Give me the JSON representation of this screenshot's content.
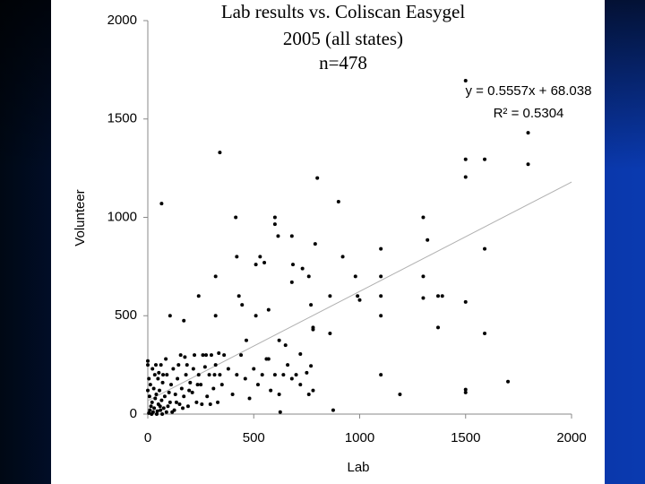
{
  "chart_data": {
    "type": "scatter",
    "title": [
      "Lab results vs. Coliscan Easygel",
      "2005 (all states)",
      "n=478"
    ],
    "x_label": "Lab",
    "y_label": "Volunteer",
    "xlim": [
      0,
      2000
    ],
    "ylim": [
      0,
      2000
    ],
    "xticks": [
      0,
      500,
      1000,
      1500,
      2000
    ],
    "yticks": [
      0,
      500,
      1000,
      1500,
      2000
    ],
    "grid": false,
    "color": "#000000",
    "x": [
      65,
      340,
      415,
      1500,
      1795,
      1795,
      1500,
      1590,
      1500,
      800,
      900,
      1300,
      1320,
      1590,
      1100,
      600,
      600,
      615,
      680,
      790,
      920,
      980,
      1100,
      1300,
      530,
      550,
      510,
      420,
      320,
      685,
      730,
      760,
      680,
      240,
      430,
      860,
      990,
      1000,
      1100,
      1300,
      1370,
      1390,
      1500,
      770,
      570,
      510,
      1100,
      105,
      170,
      320,
      445,
      780,
      780,
      860,
      1370,
      1590,
      465,
      620,
      650,
      720,
      770,
      570,
      1100,
      1190,
      1500,
      1500,
      1700,
      875,
      625,
      760,
      680,
      5,
      10,
      15,
      20,
      25,
      30,
      35,
      40,
      45,
      50,
      55,
      60,
      65,
      70,
      75,
      80,
      90,
      95,
      100,
      105,
      110,
      120,
      125,
      130,
      140,
      150,
      155,
      160,
      170,
      180,
      185,
      190,
      200,
      210,
      220,
      230,
      240,
      250,
      260,
      270,
      280,
      290,
      300,
      310,
      320,
      330,
      340,
      350,
      360,
      380,
      400,
      420,
      440,
      460,
      480,
      500,
      520,
      540,
      560,
      580,
      600,
      620,
      640,
      660,
      700,
      720,
      750,
      780,
      0,
      0,
      0,
      5,
      8,
      12,
      18,
      22,
      28,
      33,
      38,
      42,
      48,
      52,
      58,
      62,
      68,
      72,
      85,
      88,
      115,
      135,
      145,
      165,
      175,
      195,
      215,
      235,
      255,
      275,
      295,
      315,
      335
    ],
    "values": [
      1070,
      1330,
      1000,
      1695,
      1430,
      1270,
      1295,
      1295,
      1205,
      1200,
      1080,
      1000,
      885,
      840,
      840,
      1000,
      965,
      905,
      905,
      865,
      800,
      700,
      700,
      700,
      800,
      770,
      760,
      800,
      700,
      760,
      740,
      700,
      670,
      600,
      600,
      600,
      600,
      580,
      600,
      590,
      600,
      600,
      570,
      555,
      530,
      500,
      500,
      500,
      475,
      500,
      555,
      440,
      430,
      410,
      440,
      410,
      375,
      375,
      350,
      305,
      245,
      280,
      200,
      100,
      110,
      125,
      165,
      20,
      10,
      100,
      180,
      5,
      20,
      40,
      60,
      10,
      30,
      80,
      100,
      15,
      50,
      120,
      20,
      70,
      160,
      30,
      90,
      200,
      40,
      110,
      60,
      150,
      230,
      20,
      100,
      180,
      50,
      300,
      130,
      90,
      200,
      250,
      40,
      160,
      110,
      300,
      60,
      200,
      150,
      300,
      240,
      90,
      200,
      300,
      130,
      250,
      60,
      200,
      150,
      300,
      230,
      100,
      200,
      300,
      180,
      80,
      230,
      150,
      200,
      280,
      120,
      200,
      100,
      200,
      250,
      200,
      150,
      210,
      120,
      120,
      250,
      270,
      180,
      90,
      150,
      0,
      230,
      130,
      200,
      250,
      0,
      180,
      210,
      40,
      250,
      0,
      200,
      280,
      10,
      10,
      60,
      250,
      30,
      290,
      120,
      230,
      150,
      50,
      300,
      50,
      200,
      310
    ],
    "trendline": {
      "slope": 0.5557,
      "intercept": 68.038,
      "color": "#b0b0b0",
      "equation": "y = 0.5557x + 68.038",
      "r2": "R² = 0.5304"
    }
  }
}
